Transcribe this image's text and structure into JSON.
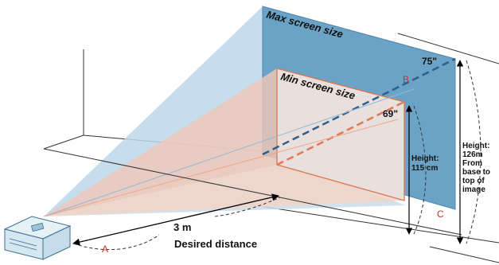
{
  "labels": {
    "max_screen": "Max screen size",
    "min_screen": "Min screen size",
    "max_diag": "75\"",
    "min_diag": "69\"",
    "point_a": "A",
    "point_b": "B",
    "point_c": "C",
    "distance_value": "3 m",
    "distance_caption": "Desired distance",
    "min_height": [
      "Height:",
      "115 cm"
    ],
    "max_height": [
      "Height:",
      "126m",
      "From",
      "base to",
      "top of",
      "image"
    ]
  },
  "colors": {
    "max_fill": "#6aa3c6",
    "min_fill": "#e9dfdc",
    "beam_blue": "#bcd7ea",
    "beam_salmon": "#f0c7b6",
    "marker_red": "#c0392b"
  }
}
